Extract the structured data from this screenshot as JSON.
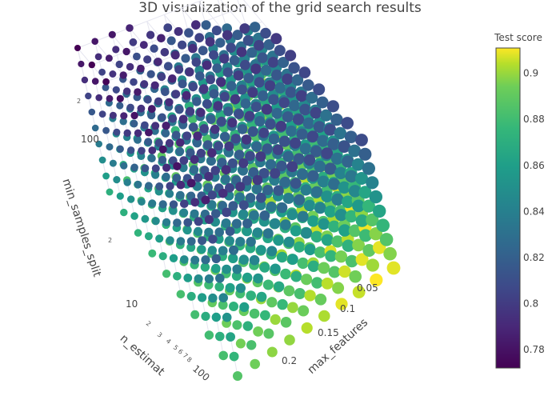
{
  "chart_data": {
    "type": "scatter",
    "title": "3D visualization of the grid search results",
    "axes": {
      "x": {
        "label": "max_features",
        "ticks": [
          "0.05",
          "0.1",
          "0.15",
          "0.2"
        ]
      },
      "y": {
        "label": "n_estimat",
        "ticks": [
          "2",
          "3",
          "4",
          "5",
          "6",
          "7",
          "8",
          "100"
        ]
      },
      "z": {
        "label": "min_samples_split",
        "ticks": [
          "2",
          "10",
          "2",
          "100"
        ]
      }
    },
    "colorbar": {
      "title": "Test score",
      "range": [
        0.772,
        0.911
      ],
      "ticks": [
        "0.9",
        "0.88",
        "0.86",
        "0.84",
        "0.82",
        "0.8",
        "0.78"
      ],
      "colorscale": "viridis"
    },
    "grid": true,
    "points_per_axis": 10
  }
}
